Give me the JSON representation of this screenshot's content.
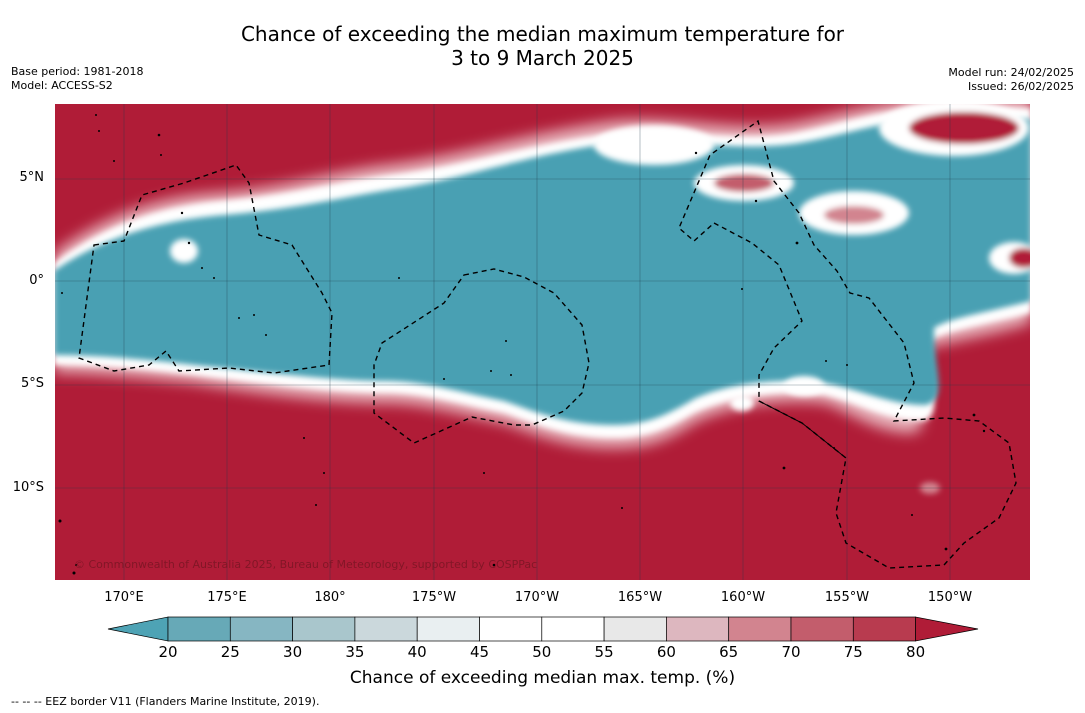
{
  "title": {
    "line1": "Chance of exceeding the median maximum temperature for",
    "line2": "3 to 9 March 2025"
  },
  "meta": {
    "base_period": "Base period: 1981-2018",
    "model": "Model: ACCESS-S2",
    "model_run": "Model run: 24/02/2025",
    "issued": "Issued: 26/02/2025"
  },
  "map": {
    "latitude_labels": [
      "5°N",
      "0°",
      "5°S",
      "10°S"
    ],
    "longitude_labels": [
      "170°E",
      "175°E",
      "180°",
      "175°W",
      "170°W",
      "165°W",
      "160°W",
      "155°W",
      "150°W"
    ],
    "copyright": "© Commonwealth of Australia 2025, Bureau of Meteorology, supported by COSPPac",
    "colors": {
      "warm": "#b01c37",
      "cool": "#4aa0b3",
      "neutral": "#ffffff"
    }
  },
  "colorbar": {
    "ticks": [
      "20",
      "25",
      "30",
      "35",
      "40",
      "45",
      "50",
      "55",
      "60",
      "65",
      "70",
      "75",
      "80"
    ],
    "colors": [
      "#4ea3b5",
      "#67a9b7",
      "#86b6c2",
      "#a9c6cc",
      "#cbd8dc",
      "#e9eff1",
      "#ffffff",
      "#ffffff",
      "#e8e8e8",
      "#ddb7bf",
      "#d2848f",
      "#c35d6c",
      "#b83b4f",
      "#b01c37"
    ],
    "title": "Chance of exceeding median max. temp. (%)"
  },
  "footer": "--  --  -- EEZ border V11 (Flanders Marine Institute, 2019)."
}
